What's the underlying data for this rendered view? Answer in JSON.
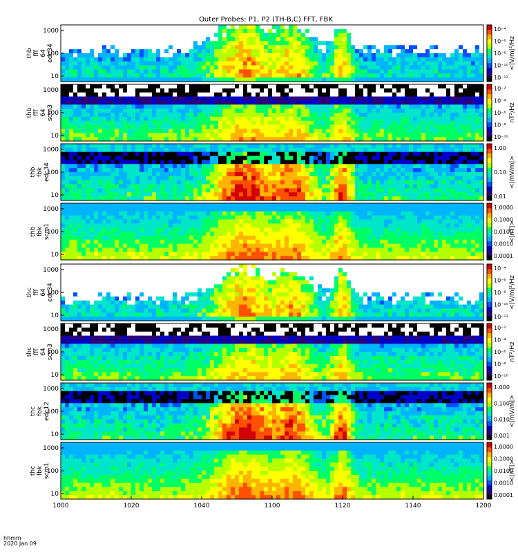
{
  "title": "Outer Probes: P1, P2 (TH-B,C) FFT, FBK",
  "footer": {
    "line1": "hhmm",
    "line2": "2020 Jan 09"
  },
  "x_axis": {
    "ticks": [
      "1000",
      "1020",
      "1040",
      "1100",
      "1120",
      "1140",
      "1200"
    ]
  },
  "colors": {
    "colormap": [
      "#000000",
      "#2b007a",
      "#0000c8",
      "#0050ff",
      "#00b4ff",
      "#00e6c8",
      "#00ff64",
      "#b4ff00",
      "#ffff00",
      "#ffb400",
      "#ff5000",
      "#d20000"
    ]
  },
  "chart_data": [
    {
      "type": "heatmap",
      "panel": "thb_fff_64_edc34",
      "ylabel": [
        "thb",
        "fff",
        "64",
        "edc34"
      ],
      "yticks": [
        "1000",
        "100",
        "10"
      ],
      "zlabel": "<|V/m|²/Hz",
      "zticks": [
        "10⁻⁴",
        "10⁻⁶",
        "10⁻⁸",
        "10⁻¹⁰",
        "10⁻¹²"
      ]
    },
    {
      "type": "heatmap",
      "panel": "thb_fff_64_scm3",
      "ylabel": [
        "thb",
        "fff",
        "64",
        "scm3"
      ],
      "yticks": [
        "1000",
        "100",
        "10"
      ],
      "zlabel": "nT²/Hz",
      "zticks": [
        "10⁻²",
        "10⁻⁴",
        "10⁻⁶",
        "10⁻⁸",
        "10⁻¹⁰"
      ]
    },
    {
      "type": "heatmap",
      "panel": "thb_fbk_edc34",
      "ylabel": [
        "thb",
        "fbk",
        "edc34"
      ],
      "yticks": [
        "1000",
        "100",
        "10"
      ],
      "zlabel": "<|mV/m|>",
      "zticks": [
        "1.00",
        "0.10",
        "0.01"
      ]
    },
    {
      "type": "heatmap",
      "panel": "thb_fbk_scm1",
      "ylabel": [
        "thb",
        "fbk",
        "scm1"
      ],
      "yticks": [
        "1000",
        "100",
        "10"
      ],
      "zlabel": "<|nT|>",
      "zticks": [
        "1.0000",
        "0.1000",
        "0.0100",
        "0.0010",
        "0.0001"
      ]
    },
    {
      "type": "heatmap",
      "panel": "thc_fff_64_edc34",
      "ylabel": [
        "thc",
        "fff",
        "64",
        "edc34"
      ],
      "yticks": [
        "1000",
        "100",
        "10"
      ],
      "zlabel": "<|V/m|²/Hz",
      "zticks": [
        "10⁻⁴",
        "10⁻⁶",
        "10⁻⁸",
        "10⁻¹⁰",
        "10⁻¹²"
      ]
    },
    {
      "type": "heatmap",
      "panel": "thc_fff_64_scm3",
      "ylabel": [
        "thc",
        "fff",
        "64",
        "scm3"
      ],
      "yticks": [
        "1000",
        "100",
        "10"
      ],
      "zlabel": "nT²/Hz",
      "zticks": [
        "10⁻²",
        "10⁻⁴",
        "10⁻⁶",
        "10⁻⁸",
        "10⁻¹⁰"
      ]
    },
    {
      "type": "heatmap",
      "panel": "thc_fbk_edc12",
      "ylabel": [
        "thc",
        "fbk",
        "edc12"
      ],
      "yticks": [
        "1000",
        "100",
        "10"
      ],
      "zlabel": "<|mV/m|>",
      "zticks": [
        "1.000",
        "0.100",
        "0.010",
        "0.001"
      ]
    },
    {
      "type": "heatmap",
      "panel": "thc_fbk_scm1",
      "ylabel": [
        "thc",
        "fbk",
        "scm1"
      ],
      "yticks": [
        "1000",
        "100",
        "10"
      ],
      "zlabel": "<|nT|>",
      "zticks": [
        "1.0000",
        "0.1000",
        "0.0100",
        "0.0010",
        "0.0001"
      ]
    }
  ]
}
